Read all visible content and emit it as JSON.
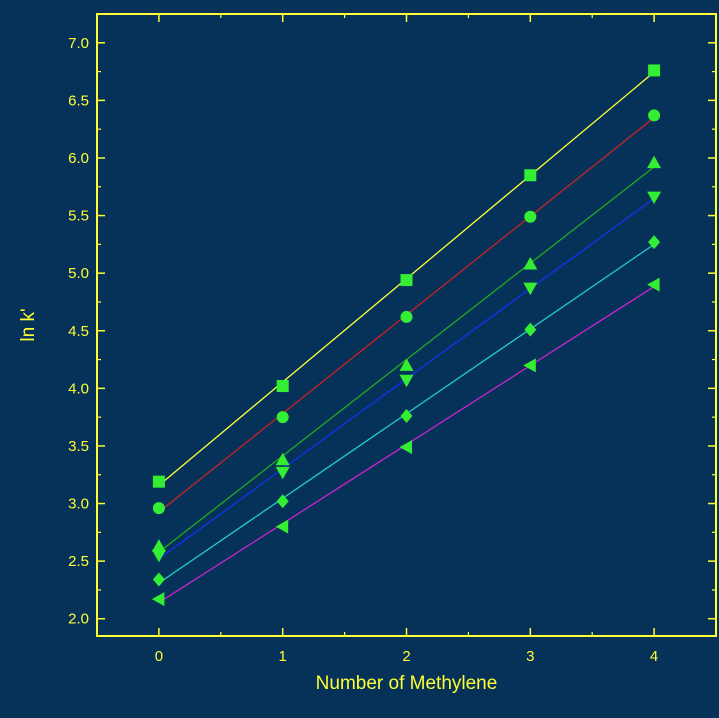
{
  "chart_data": {
    "type": "scatter",
    "xlabel": "Number of Methylene",
    "ylabel": "ln k'",
    "xlim": [
      -0.5,
      4.5
    ],
    "ylim": [
      1.85,
      7.25
    ],
    "xticks": [
      "0",
      "1",
      "2",
      "3",
      "4"
    ],
    "yticks": [
      "2.0",
      "2.5",
      "3.0",
      "3.5",
      "4.0",
      "4.5",
      "5.0",
      "5.5",
      "6.0",
      "6.5",
      "7.0"
    ],
    "grid": false,
    "background_color": "#06325a",
    "axis_color": "#ffff33",
    "marker_color": "#33ee33",
    "series": [
      {
        "marker": "square",
        "line_color": "#ffff33",
        "x": [
          0,
          1,
          2,
          3,
          4
        ],
        "y": [
          3.19,
          4.02,
          4.94,
          5.85,
          6.76
        ]
      },
      {
        "marker": "circle",
        "line_color": "#cc2222",
        "x": [
          0,
          1,
          2,
          3,
          4
        ],
        "y": [
          2.96,
          3.75,
          4.62,
          5.49,
          6.37
        ]
      },
      {
        "marker": "triangle-up",
        "line_color": "#22aa22",
        "x": [
          0,
          1,
          2,
          3,
          4
        ],
        "y": [
          2.63,
          3.38,
          4.2,
          5.08,
          5.96
        ]
      },
      {
        "marker": "triangle-down",
        "line_color": "#1133ee",
        "x": [
          0,
          1,
          2,
          3,
          4
        ],
        "y": [
          2.55,
          3.27,
          4.07,
          4.87,
          5.66
        ]
      },
      {
        "marker": "diamond",
        "line_color": "#22cccc",
        "x": [
          0,
          1,
          2,
          3,
          4
        ],
        "y": [
          2.34,
          3.02,
          3.76,
          4.51,
          5.27
        ]
      },
      {
        "marker": "triangle-left",
        "line_color": "#cc22cc",
        "x": [
          0,
          1,
          2,
          3,
          4
        ],
        "y": [
          2.17,
          2.8,
          3.49,
          4.2,
          4.9
        ]
      }
    ]
  }
}
